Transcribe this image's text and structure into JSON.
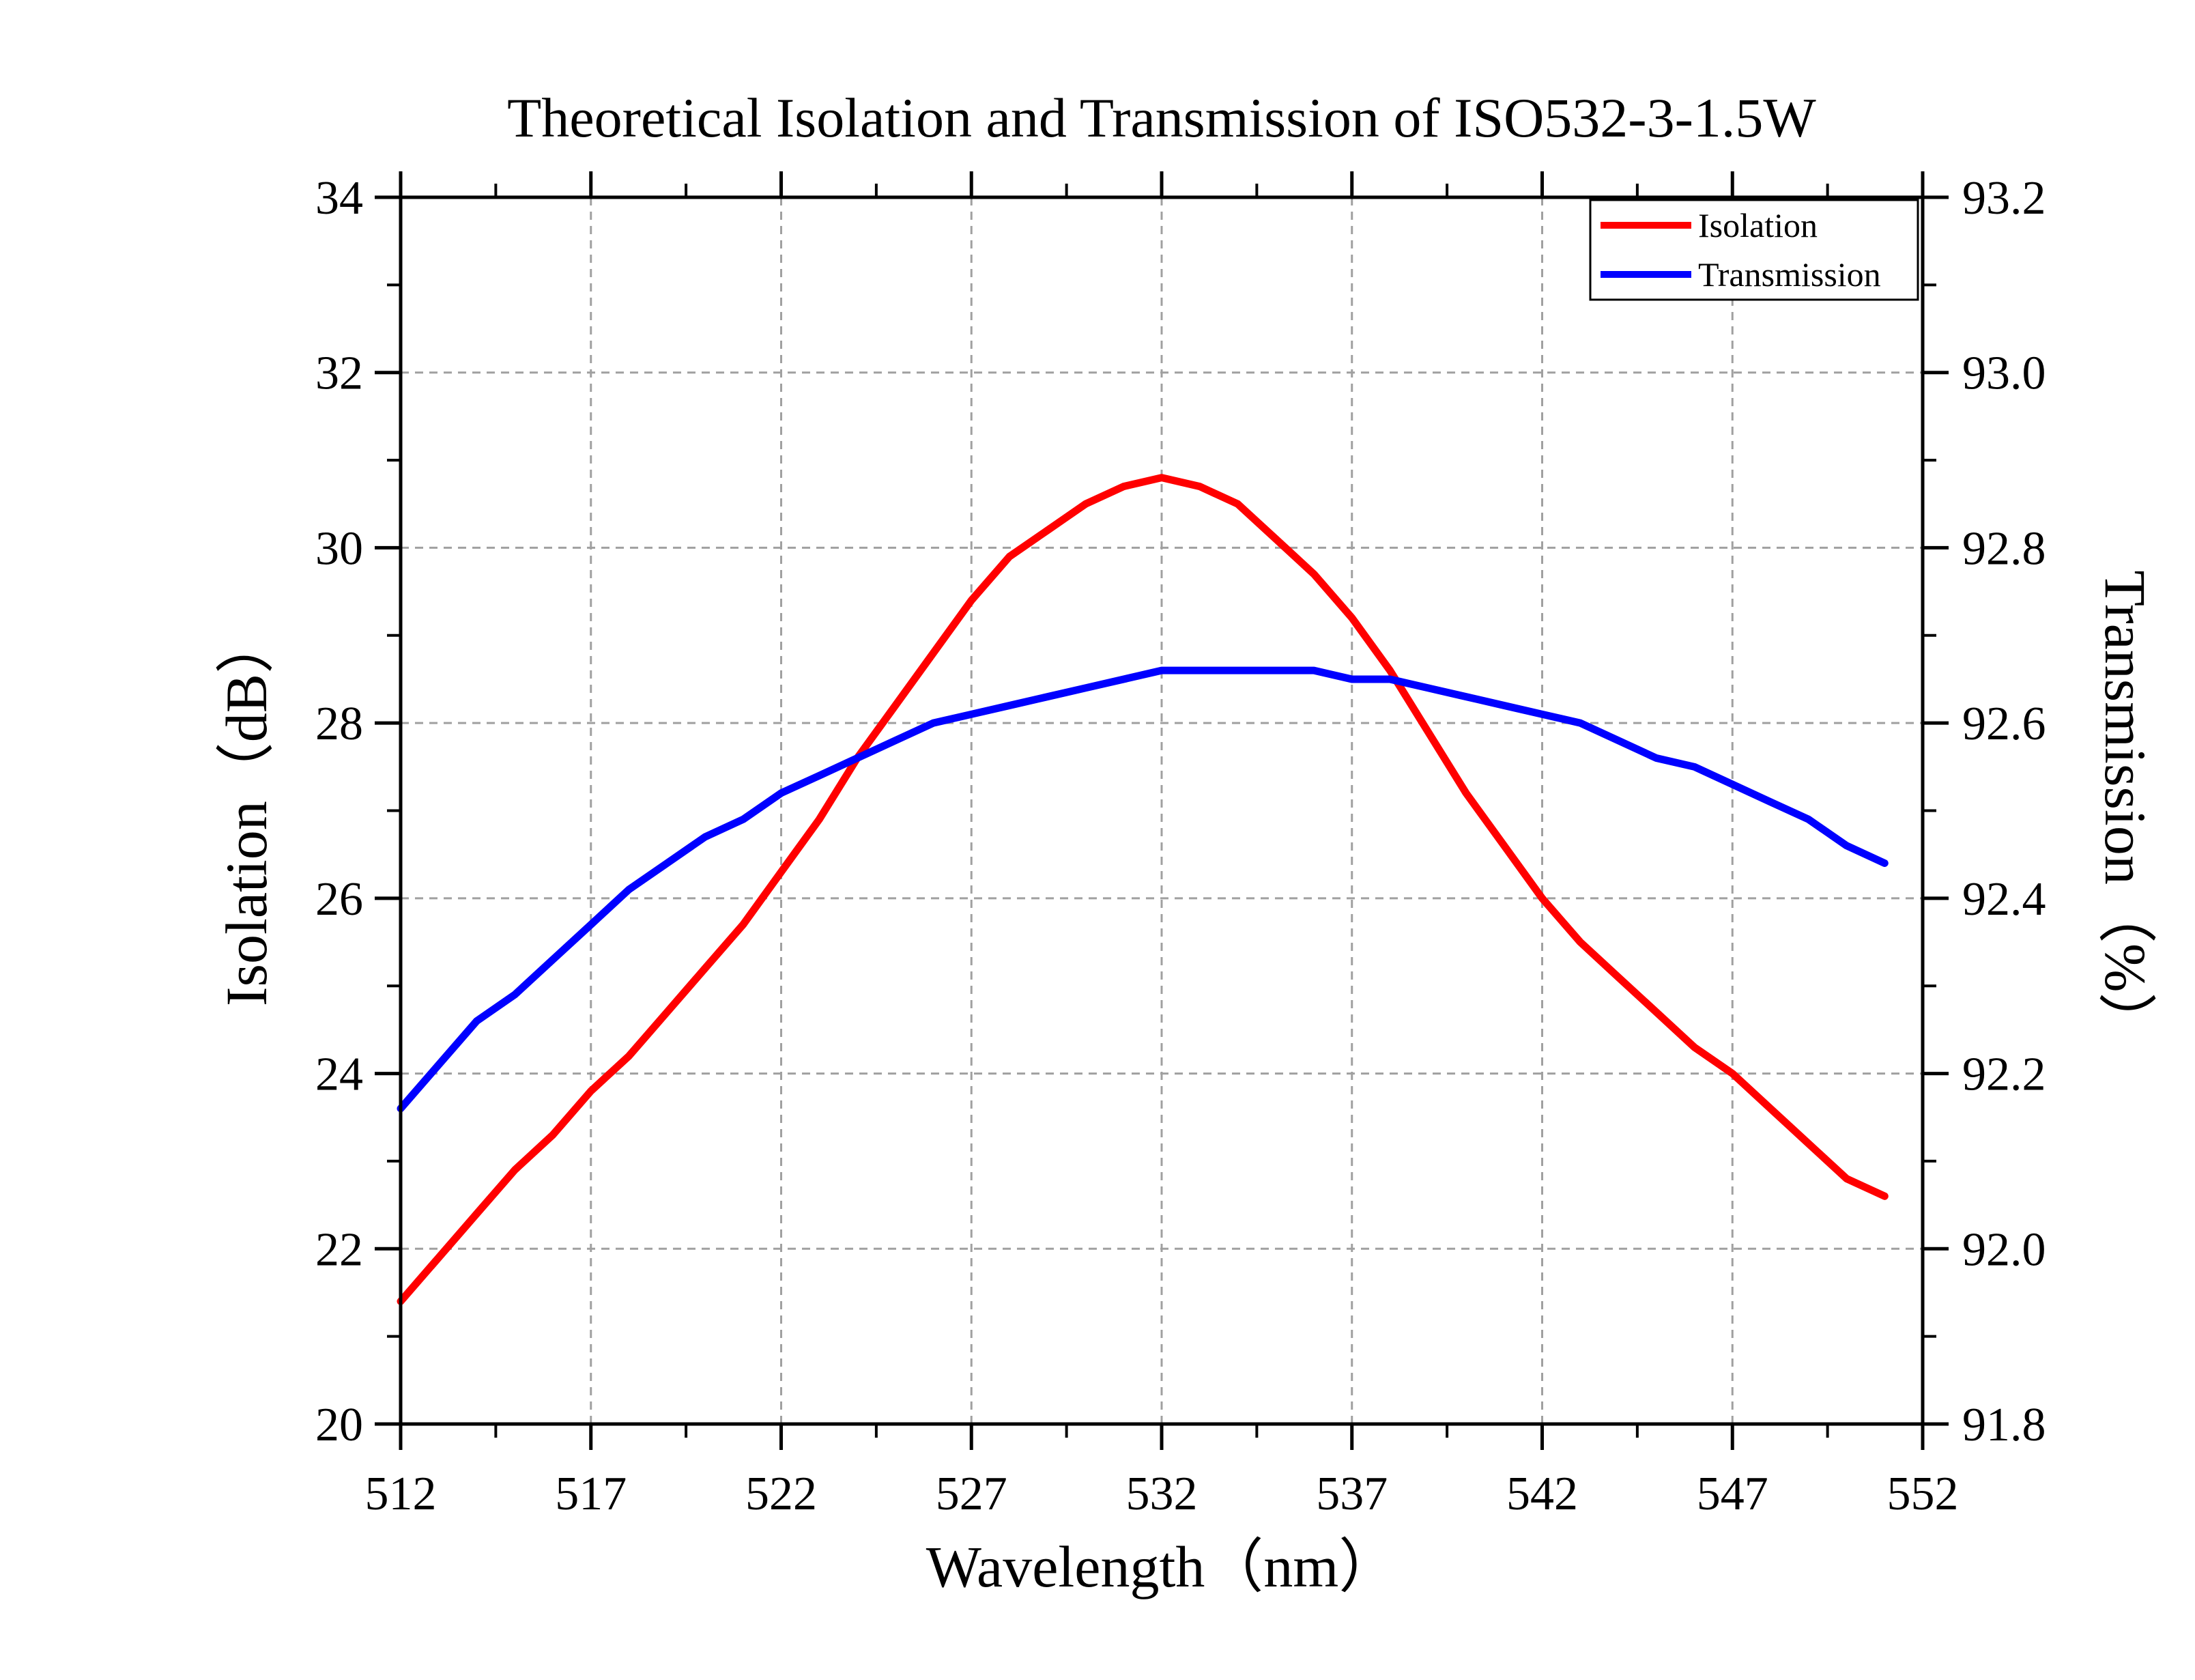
{
  "chart_data": {
    "type": "line",
    "title": "Theoretical Isolation and Transmission of ISO532-3-1.5W",
    "xlabel": "Wavelength（nm）",
    "ylabel": "Isolation（dB）",
    "y2label": "Transmission（%）",
    "xlim": [
      512,
      552
    ],
    "ylim": [
      20,
      34
    ],
    "y2lim": [
      91.8,
      93.2
    ],
    "xticks": [
      "512",
      "517",
      "522",
      "527",
      "532",
      "537",
      "542",
      "547",
      "552"
    ],
    "yticks": [
      "20",
      "22",
      "24",
      "26",
      "28",
      "30",
      "32",
      "34"
    ],
    "y2ticks": [
      "91.8",
      "92.0",
      "92.2",
      "92.4",
      "92.6",
      "92.8",
      "93.0",
      "93.2"
    ],
    "grid": true,
    "legend_position": "top-right",
    "series": [
      {
        "name": "Isolation",
        "axis": "left",
        "color": "#ff0000",
        "x": [
          512,
          513,
          514,
          515,
          516,
          517,
          518,
          519,
          520,
          521,
          522,
          523,
          524,
          525,
          526,
          527,
          528,
          529,
          530,
          531,
          532,
          533,
          534,
          535,
          536,
          537,
          538,
          539,
          540,
          541,
          542,
          543,
          544,
          545,
          546,
          547,
          548,
          549,
          550,
          551
        ],
        "values": [
          21.4,
          21.9,
          22.4,
          22.9,
          23.3,
          23.8,
          24.2,
          24.7,
          25.2,
          25.7,
          26.3,
          26.9,
          27.6,
          28.2,
          28.8,
          29.4,
          29.9,
          30.2,
          30.5,
          30.7,
          30.8,
          30.7,
          30.5,
          30.1,
          29.7,
          29.2,
          28.6,
          27.9,
          27.2,
          26.6,
          26.0,
          25.5,
          25.1,
          24.7,
          24.3,
          24.0,
          23.6,
          23.2,
          22.8,
          22.6
        ]
      },
      {
        "name": "Transmission",
        "axis": "right",
        "color": "#0000ff",
        "x": [
          512,
          514,
          515,
          516,
          517,
          518,
          519,
          520,
          521,
          522,
          523,
          524,
          525,
          526,
          527,
          528,
          529,
          530,
          531,
          532,
          533,
          534,
          535,
          536,
          537,
          538,
          539,
          540,
          541,
          542,
          543,
          544,
          545,
          546,
          547,
          548,
          549,
          550,
          551
        ],
        "values": [
          92.16,
          92.26,
          92.29,
          92.33,
          92.37,
          92.41,
          92.44,
          92.47,
          92.49,
          92.52,
          92.54,
          92.56,
          92.58,
          92.6,
          92.61,
          92.62,
          92.63,
          92.64,
          92.65,
          92.66,
          92.66,
          92.66,
          92.66,
          92.66,
          92.65,
          92.65,
          92.64,
          92.63,
          92.62,
          92.61,
          92.6,
          92.58,
          92.56,
          92.55,
          92.53,
          92.51,
          92.49,
          92.46,
          92.44
        ]
      }
    ]
  }
}
